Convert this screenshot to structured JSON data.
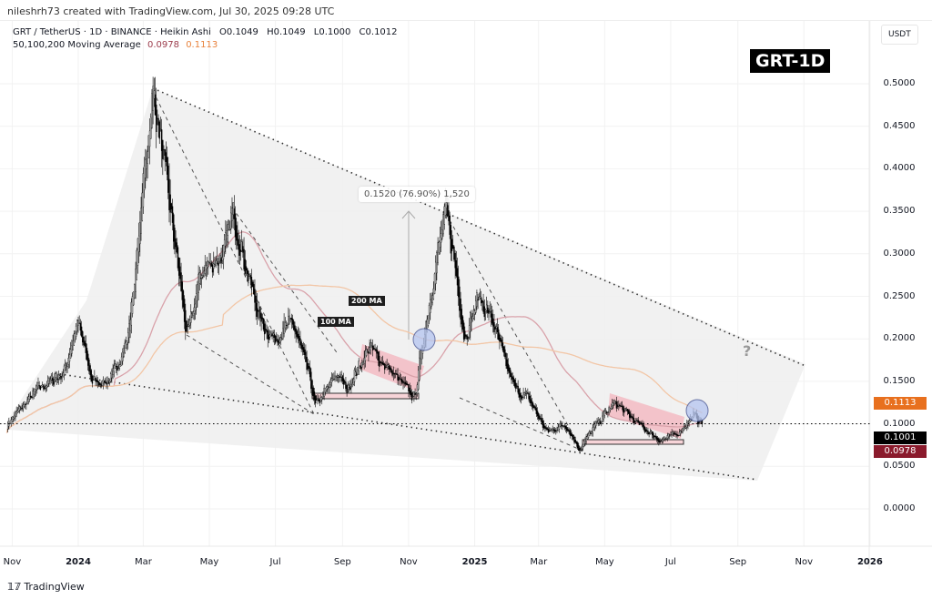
{
  "credit": "nileshrh73 created with TradingView.com, Jul 30, 2025 09:28 UTC",
  "legend": {
    "symbol": "GRT / TetherUS · 1D · BINANCE · Heikin Ashi",
    "open": "O0.1049",
    "high": "H0.1049",
    "low": "L0.1000",
    "close": "C0.1012",
    "ma_label": "50,100,200 Moving Average",
    "ma_value_1": "0.0978",
    "ma_value_2": "0.1113"
  },
  "badge": "GRT-1D",
  "currency": "USDT",
  "price_labels": [
    {
      "value": "0.1113",
      "color": "#e8701e"
    },
    {
      "value": "0.1001",
      "color": "#000000"
    },
    {
      "value": "0.0978",
      "color": "#8a1a2c"
    }
  ],
  "annotations": {
    "measure": "0.1520 (76.90%) 1,520",
    "ma200_label": "200 MA",
    "ma100_label": "100 MA",
    "question": "?"
  },
  "footer": {
    "logo_text": "TradingView"
  },
  "chart_data": {
    "type": "candlestick",
    "candle_style": "Heikin Ashi",
    "y_axis": {
      "ticks": [
        "0.5000",
        "0.4500",
        "0.4000",
        "0.3500",
        "0.3000",
        "0.2500",
        "0.2000",
        "0.1500",
        "0.1000",
        "0.0500",
        "0.0000"
      ],
      "range": [
        -0.07,
        0.55
      ],
      "position": "right"
    },
    "x_axis": {
      "ticks": [
        {
          "label": "Nov",
          "date": "2023-11-01",
          "year": false
        },
        {
          "label": "2024",
          "date": "2024-01-01",
          "year": true
        },
        {
          "label": "Mar",
          "date": "2024-03-01",
          "year": false
        },
        {
          "label": "May",
          "date": "2024-05-01",
          "year": false
        },
        {
          "label": "Jul",
          "date": "2024-07-01",
          "year": false
        },
        {
          "label": "Sep",
          "date": "2024-09-01",
          "year": false
        },
        {
          "label": "Nov",
          "date": "2024-11-01",
          "year": false
        },
        {
          "label": "2025",
          "date": "2025-01-01",
          "year": true
        },
        {
          "label": "Mar",
          "date": "2025-03-01",
          "year": false
        },
        {
          "label": "May",
          "date": "2025-05-01",
          "year": false
        },
        {
          "label": "Jul",
          "date": "2025-07-01",
          "year": false
        },
        {
          "label": "Sep",
          "date": "2025-09-01",
          "year": false
        },
        {
          "label": "Nov",
          "date": "2025-11-01",
          "year": false
        },
        {
          "label": "2026",
          "date": "2026-01-01",
          "year": true
        }
      ]
    },
    "grid": true,
    "current_price": 0.1001,
    "price_path": [
      [
        "2023-10-27",
        0.1
      ],
      [
        "2023-11-23",
        0.14
      ],
      [
        "2023-12-18",
        0.16
      ],
      [
        "2023-12-31",
        0.22
      ],
      [
        "2024-01-13",
        0.15
      ],
      [
        "2024-01-30",
        0.15
      ],
      [
        "2024-02-15",
        0.2
      ],
      [
        "2024-02-24",
        0.3
      ],
      [
        "2024-03-03",
        0.42
      ],
      [
        "2024-03-10",
        0.49
      ],
      [
        "2024-03-20",
        0.4
      ],
      [
        "2024-04-02",
        0.28
      ],
      [
        "2024-04-10",
        0.2
      ],
      [
        "2024-04-23",
        0.28
      ],
      [
        "2024-05-14",
        0.3
      ],
      [
        "2024-05-22",
        0.35
      ],
      [
        "2024-06-04",
        0.28
      ],
      [
        "2024-06-17",
        0.22
      ],
      [
        "2024-06-29",
        0.2
      ],
      [
        "2024-07-16",
        0.22
      ],
      [
        "2024-08-02",
        0.15
      ],
      [
        "2024-08-06",
        0.12
      ],
      [
        "2024-08-27",
        0.16
      ],
      [
        "2024-09-04",
        0.14
      ],
      [
        "2024-09-25",
        0.19
      ],
      [
        "2024-10-16",
        0.16
      ],
      [
        "2024-11-06",
        0.13
      ],
      [
        "2024-11-14",
        0.2
      ],
      [
        "2024-11-27",
        0.3
      ],
      [
        "2024-12-05",
        0.35
      ],
      [
        "2024-12-14",
        0.28
      ],
      [
        "2024-12-22",
        0.2
      ],
      [
        "2025-01-04",
        0.25
      ],
      [
        "2025-01-17",
        0.22
      ],
      [
        "2025-01-29",
        0.17
      ],
      [
        "2025-02-07",
        0.14
      ],
      [
        "2025-02-19",
        0.13
      ],
      [
        "2025-03-08",
        0.09
      ],
      [
        "2025-03-25",
        0.1
      ],
      [
        "2025-04-07",
        0.07
      ],
      [
        "2025-04-23",
        0.1
      ],
      [
        "2025-05-10",
        0.125
      ],
      [
        "2025-05-31",
        0.1
      ],
      [
        "2025-06-21",
        0.08
      ],
      [
        "2025-07-08",
        0.09
      ],
      [
        "2025-07-21",
        0.11
      ],
      [
        "2025-07-30",
        0.101
      ]
    ],
    "moving_averages": [
      {
        "name": "100 MA",
        "period": 100,
        "color": "#d9a2aa",
        "last": 0.0978
      },
      {
        "name": "200 MA",
        "period": 200,
        "color": "#f2c6a6",
        "last": 0.1113
      }
    ],
    "colors": {
      "candles": "#000000",
      "wedge_fill": "#f0f0f0",
      "flag": "#f4b8c0",
      "circle": "#b4c4f0"
    }
  }
}
